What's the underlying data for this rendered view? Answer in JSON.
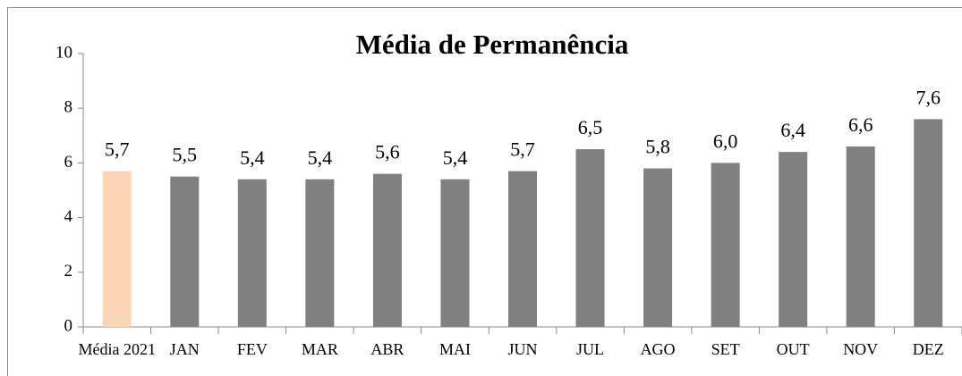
{
  "chart_data": {
    "type": "bar",
    "title": "Média de Permanência",
    "categories": [
      "Média 2021",
      "JAN",
      "FEV",
      "MAR",
      "ABR",
      "MAI",
      "JUN",
      "JUL",
      "AGO",
      "SET",
      "OUT",
      "NOV",
      "DEZ"
    ],
    "values": [
      5.7,
      5.5,
      5.4,
      5.4,
      5.6,
      5.4,
      5.7,
      6.5,
      5.8,
      6.0,
      6.4,
      6.6,
      7.6
    ],
    "value_labels": [
      "5,7",
      "5,5",
      "5,4",
      "5,4",
      "5,6",
      "5,4",
      "5,7",
      "6,5",
      "5,8",
      "6,0",
      "6,4",
      "6,6",
      "7,6"
    ],
    "colors": [
      "#fcd5b4",
      "#808080",
      "#808080",
      "#808080",
      "#808080",
      "#808080",
      "#808080",
      "#808080",
      "#808080",
      "#808080",
      "#808080",
      "#808080",
      "#808080"
    ],
    "ylim": [
      0,
      10
    ],
    "yticks": [
      0,
      2,
      4,
      6,
      8,
      10
    ],
    "grid": false
  }
}
